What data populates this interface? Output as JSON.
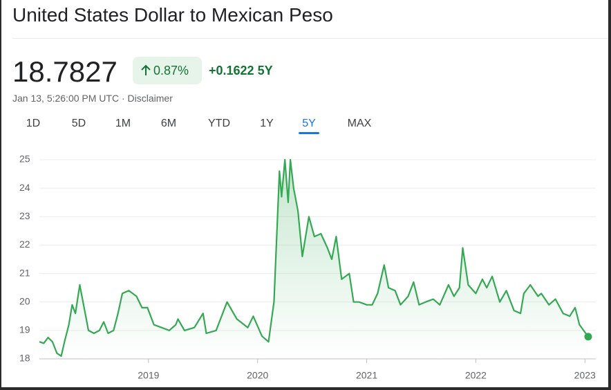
{
  "chart_data": {
    "type": "line",
    "title": "United States Dollar to Mexican Peso",
    "price": "18.7827",
    "change_percent": "0.87%",
    "change": "+0.1622 5Y",
    "timestamp": "Jan 13, 5:26:00 PM UTC · Disclaimer",
    "ranges": [
      "1D",
      "5D",
      "1M",
      "6M",
      "YTD",
      "1Y",
      "5Y",
      "MAX"
    ],
    "selected_range": 6,
    "color": "#34a853",
    "grid": true,
    "x": [
      2018.0,
      2018.04,
      2018.08,
      2018.12,
      2018.16,
      2018.2,
      2018.23,
      2018.27,
      2018.3,
      2018.33,
      2018.37,
      2018.41,
      2018.45,
      2018.5,
      2018.55,
      2018.59,
      2018.63,
      2018.68,
      2018.72,
      2018.76,
      2018.82,
      2018.89,
      2018.94,
      2018.99,
      2019.05,
      2019.12,
      2019.19,
      2019.25,
      2019.27,
      2019.33,
      2019.42,
      2019.5,
      2019.53,
      2019.62,
      2019.72,
      2019.81,
      2019.91,
      2019.96,
      2020.04,
      2020.1,
      2020.15,
      2020.2,
      2020.22,
      2020.25,
      2020.28,
      2020.3,
      2020.33,
      2020.37,
      2020.41,
      2020.47,
      2020.52,
      2020.58,
      2020.64,
      2020.68,
      2020.72,
      2020.77,
      2020.84,
      2020.88,
      2020.93,
      2021.0,
      2021.05,
      2021.1,
      2021.16,
      2021.2,
      2021.26,
      2021.31,
      2021.38,
      2021.43,
      2021.48,
      2021.54,
      2021.61,
      2021.67,
      2021.75,
      2021.8,
      2021.85,
      2021.88,
      2021.93,
      2022.0,
      2022.06,
      2022.1,
      2022.15,
      2022.22,
      2022.28,
      2022.35,
      2022.41,
      2022.44,
      2022.5,
      2022.57,
      2022.6,
      2022.67,
      2022.73,
      2022.8,
      2022.86,
      2022.91,
      2022.95,
      2023.03
    ],
    "values": [
      18.6,
      18.55,
      18.75,
      18.6,
      18.2,
      18.1,
      18.6,
      19.2,
      19.9,
      19.6,
      20.6,
      19.8,
      19.0,
      18.9,
      19.0,
      19.3,
      18.9,
      19.0,
      19.6,
      20.3,
      20.4,
      20.2,
      19.8,
      19.8,
      19.2,
      19.1,
      19.0,
      19.2,
      19.4,
      19.0,
      19.1,
      19.6,
      18.9,
      19.0,
      20.0,
      19.4,
      19.1,
      19.5,
      18.8,
      18.6,
      20.0,
      24.6,
      23.7,
      25.0,
      23.5,
      25.0,
      24.0,
      23.2,
      21.6,
      23.0,
      22.3,
      22.4,
      21.9,
      21.5,
      22.3,
      20.8,
      21.0,
      20.0,
      20.0,
      19.9,
      19.9,
      20.3,
      21.3,
      20.5,
      20.4,
      19.9,
      20.2,
      20.7,
      19.9,
      20.0,
      20.1,
      19.9,
      20.6,
      20.2,
      20.5,
      21.9,
      20.6,
      20.3,
      20.8,
      20.5,
      20.9,
      20.0,
      20.4,
      19.7,
      19.6,
      20.3,
      20.6,
      20.2,
      20.3,
      19.9,
      20.1,
      19.6,
      19.5,
      19.8,
      19.2,
      18.78
    ],
    "xlim": [
      2018.0,
      2023.03
    ],
    "xticks": [
      2019,
      2020,
      2021,
      2022,
      2023
    ],
    "ylim": [
      18,
      25
    ],
    "yticks": [
      18,
      19,
      20,
      21,
      22,
      23,
      24,
      25
    ]
  }
}
